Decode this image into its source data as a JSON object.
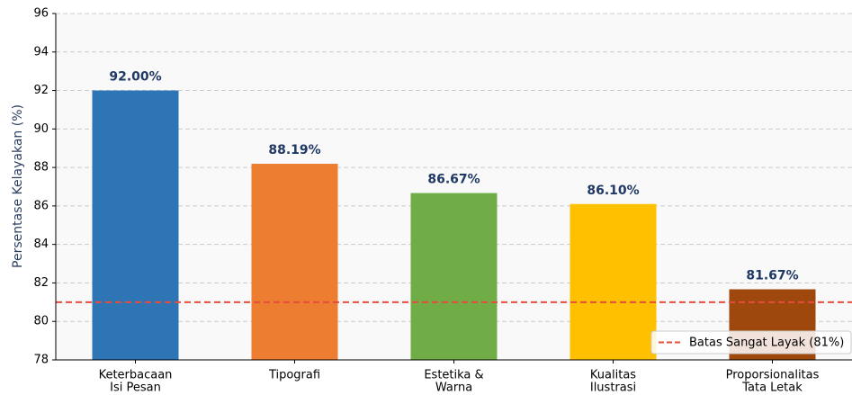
{
  "chart_data": {
    "type": "bar",
    "y_label": "Persentase Kelayakan (%)",
    "categories": [
      [
        "Keterbacaan",
        "Isi Pesan"
      ],
      [
        "Tipografi"
      ],
      [
        "Estetika &",
        "Warna"
      ],
      [
        "Kualitas",
        "Ilustrasi"
      ],
      [
        "Proporsionalitas",
        "Tata Letak"
      ]
    ],
    "values": [
      92.0,
      88.19,
      86.67,
      86.1,
      81.67
    ],
    "value_labels": [
      "92.00%",
      "88.19%",
      "86.67%",
      "86.10%",
      "81.67%"
    ],
    "colors": [
      "#2e75b6",
      "#ed7d31",
      "#70ad47",
      "#ffc000",
      "#9e480e"
    ],
    "ylim": [
      78,
      96
    ],
    "yticks": [
      78,
      80,
      82,
      84,
      86,
      88,
      90,
      92,
      94,
      96
    ],
    "grid": true,
    "reference_line": {
      "value": 81,
      "label": "Batas Sangat Layak (81%)",
      "color": "#e74c3c"
    },
    "legend": "lower right"
  }
}
